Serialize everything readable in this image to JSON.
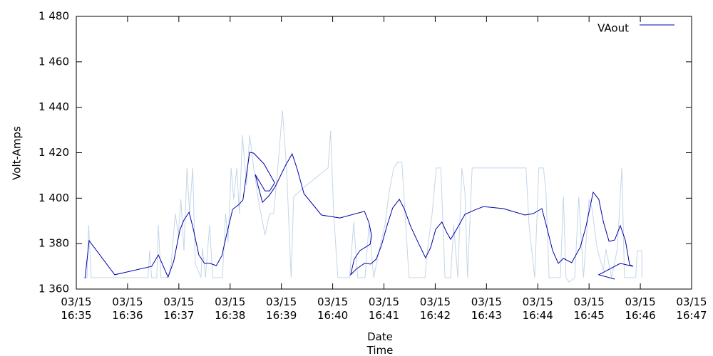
{
  "chart_data": {
    "type": "line",
    "xlabel": "Date\nTime",
    "ylabel": "Volt-Amps",
    "xlim": [
      995,
      1007
    ],
    "xticks": [
      {
        "value": 995,
        "label": "03/15\n16:35"
      },
      {
        "value": 996,
        "label": "03/15\n16:36"
      },
      {
        "value": 997,
        "label": "03/15\n16:37"
      },
      {
        "value": 998,
        "label": "03/15\n16:38"
      },
      {
        "value": 999,
        "label": "03/15\n16:39"
      },
      {
        "value": 1000,
        "label": "03/15\n16:40"
      },
      {
        "value": 1001,
        "label": "03/15\n16:41"
      },
      {
        "value": 1002,
        "label": "03/15\n16:42"
      },
      {
        "value": 1003,
        "label": "03/15\n16:43"
      },
      {
        "value": 1004,
        "label": "03/15\n16:44"
      },
      {
        "value": 1005,
        "label": "03/15\n16:45"
      },
      {
        "value": 1006,
        "label": "03/15\n16:46"
      },
      {
        "value": 1007,
        "label": "03/15\n16:47"
      }
    ],
    "ylim": [
      1360,
      1480
    ],
    "yticks": [
      {
        "value": 1360,
        "label": "1 360"
      },
      {
        "value": 1380,
        "label": "1 380"
      },
      {
        "value": 1400,
        "label": "1 400"
      },
      {
        "value": 1420,
        "label": "1 420"
      },
      {
        "value": 1440,
        "label": "1 440"
      },
      {
        "value": 1460,
        "label": "1 460"
      },
      {
        "value": 1480,
        "label": "1 480"
      }
    ],
    "legend": "top-right",
    "series": [
      {
        "color": "#c4d6e6",
        "x": [
          995.14,
          995.21,
          995.24,
          995.29,
          996.4,
          996.43,
          996.47,
          996.57,
          996.6,
          996.65,
          996.79,
          996.85,
          996.93,
          996.99,
          997.04,
          997.1,
          997.16,
          997.21,
          997.27,
          997.32,
          997.43,
          997.46,
          997.52,
          997.6,
          997.66,
          997.85,
          997.91,
          997.96,
          998.02,
          998.07,
          998.13,
          998.18,
          998.24,
          998.32,
          998.38,
          998.46,
          998.55,
          998.6,
          998.68,
          998.77,
          998.85,
          998.93,
          999.02,
          999.1,
          999.19,
          999.24,
          999.49,
          999.91,
          999.96,
          1000.02,
          1000.1,
          1000.33,
          1000.41,
          1000.49,
          1000.63,
          1000.71,
          1000.8,
          1000.91,
          1001.02,
          1001.1,
          1001.19,
          1001.27,
          1001.35,
          1001.41,
          1001.49,
          1001.8,
          1001.85,
          1001.94,
          1002.02,
          1002.11,
          1002.19,
          1002.3,
          1002.36,
          1002.44,
          1002.52,
          1002.58,
          1002.63,
          1002.72,
          1003.77,
          1003.83,
          1003.88,
          1003.94,
          1004.02,
          1004.11,
          1004.16,
          1004.22,
          1004.44,
          1004.5,
          1004.55,
          1004.61,
          1004.72,
          1004.8,
          1004.89,
          1005.0,
          1005.05,
          1005.16,
          1005.28,
          1005.33,
          1005.44,
          1005.55,
          1005.64,
          1005.69,
          1005.91,
          1005.94,
          1006.03,
          1006.03
        ],
        "values": [
          1365.0,
          1365.0,
          1388.2,
          1365.0,
          1365.0,
          1376.9,
          1365.0,
          1365.0,
          1388.2,
          1365.0,
          1365.0,
          1370.7,
          1393.2,
          1383.8,
          1399.5,
          1376.9,
          1413.3,
          1393.2,
          1413.3,
          1371.3,
          1365.0,
          1378.2,
          1365.0,
          1388.2,
          1365.0,
          1365.0,
          1393.2,
          1380.7,
          1413.3,
          1399.5,
          1413.3,
          1393.2,
          1427.7,
          1405.7,
          1427.7,
          1413.3,
          1399.5,
          1393.2,
          1383.8,
          1393.2,
          1393.2,
          1413.3,
          1438.6,
          1413.3,
          1365.0,
          1400.7,
          1405.7,
          1413.3,
          1429.6,
          1393.2,
          1365.0,
          1365.0,
          1389.5,
          1365.0,
          1365.0,
          1388.2,
          1365.0,
          1377.5,
          1388.2,
          1402.6,
          1413.3,
          1415.8,
          1415.8,
          1393.2,
          1365.0,
          1365.0,
          1377.5,
          1393.2,
          1413.3,
          1413.3,
          1365.0,
          1365.0,
          1388.2,
          1365.0,
          1413.3,
          1402.6,
          1365.0,
          1413.3,
          1413.3,
          1388.2,
          1377.5,
          1365.0,
          1413.3,
          1413.3,
          1402.6,
          1365.0,
          1365.0,
          1400.7,
          1365.0,
          1363.1,
          1365.0,
          1400.7,
          1365.0,
          1399.5,
          1396.3,
          1377.5,
          1368.1,
          1377.5,
          1365.0,
          1377.5,
          1413.3,
          1365.0,
          1365.0,
          1376.9,
          1376.9,
          1365.0
        ]
      },
      {
        "name": "VAout",
        "color": "#0000a8",
        "x": [
          995.17,
          995.25,
          995.75,
          996.47,
          996.6,
          996.79,
          996.9,
          997.02,
          997.1,
          997.2,
          997.28,
          997.39,
          997.5,
          997.61,
          997.73,
          997.84,
          997.93,
          998.05,
          998.16,
          998.25,
          998.38,
          998.46,
          998.66,
          998.87,
          998.77,
          998.68,
          998.49,
          998.55,
          998.63,
          998.77,
          998.88,
          999.09,
          999.21,
          999.31,
          999.44,
          999.78,
          1000.14,
          1000.62,
          1000.71,
          1000.76,
          1000.73,
          1000.53,
          1000.42,
          1000.35,
          1000.46,
          1000.62,
          1000.74,
          1000.85,
          1000.95,
          1001.06,
          1001.17,
          1001.3,
          1001.4,
          1001.52,
          1001.69,
          1001.81,
          1001.91,
          1002.01,
          1002.13,
          1002.22,
          1002.3,
          1002.41,
          1002.58,
          1002.77,
          1002.94,
          1003.33,
          1003.75,
          1003.91,
          1004.08,
          1004.16,
          1004.29,
          1004.4,
          1004.5,
          1004.66,
          1004.83,
          1004.94,
          1005.08,
          1005.19,
          1005.28,
          1005.39,
          1005.5,
          1005.61,
          1005.71,
          1005.79,
          1005.86,
          1005.61,
          1005.19,
          1005.5
        ],
        "values": [
          1364.7,
          1381.3,
          1366.3,
          1370.0,
          1375.0,
          1365.3,
          1372.2,
          1386.0,
          1390.4,
          1393.8,
          1386.6,
          1375.0,
          1371.3,
          1371.3,
          1370.3,
          1374.7,
          1383.8,
          1395.1,
          1397.0,
          1399.2,
          1420.2,
          1419.8,
          1415.1,
          1406.7,
          1403.2,
          1403.2,
          1410.4,
          1405.1,
          1398.2,
          1401.4,
          1405.1,
          1414.8,
          1419.5,
          1412.6,
          1402.0,
          1392.6,
          1391.3,
          1394.2,
          1389.1,
          1383.5,
          1379.7,
          1376.9,
          1373.2,
          1366.3,
          1368.8,
          1371.3,
          1371.0,
          1373.2,
          1379.1,
          1387.9,
          1395.7,
          1399.5,
          1395.1,
          1387.6,
          1379.4,
          1373.8,
          1378.2,
          1386.3,
          1389.5,
          1385.1,
          1381.9,
          1386.0,
          1392.9,
          1394.8,
          1396.3,
          1395.4,
          1392.6,
          1393.2,
          1395.4,
          1388.5,
          1376.9,
          1371.3,
          1373.5,
          1371.6,
          1378.5,
          1387.6,
          1402.6,
          1399.5,
          1389.5,
          1381.0,
          1381.6,
          1387.9,
          1381.3,
          1370.7,
          1370.0,
          1371.3,
          1366.3,
          1364.4
        ]
      }
    ]
  }
}
